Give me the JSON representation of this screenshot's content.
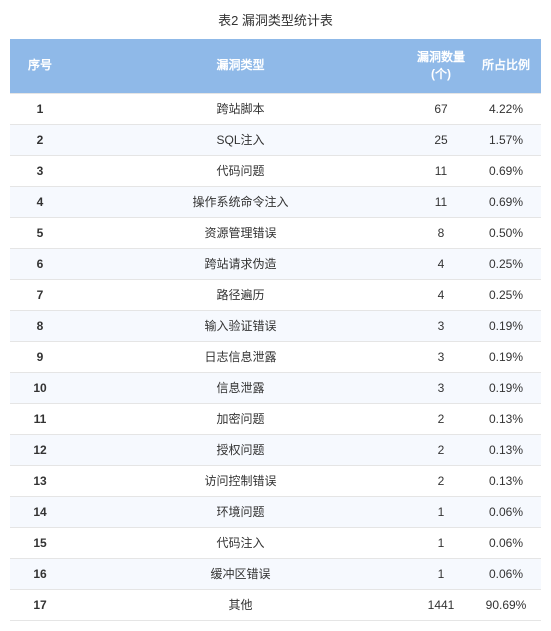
{
  "title": "表2 漏洞类型统计表",
  "table": {
    "header_bg": "#8fb9e8",
    "header_color": "#ffffff",
    "row_odd_bg": "#ffffff",
    "row_even_bg": "#f6f9fe",
    "border_color": "#e5e5e5",
    "text_color": "#333333",
    "font_size": 12,
    "columns": [
      {
        "label": "序号",
        "width": 60
      },
      {
        "label": "漏洞类型",
        "width": "auto"
      },
      {
        "label": "漏洞数量(个)",
        "width": 60
      },
      {
        "label": "所占比例",
        "width": 70
      }
    ],
    "rows": [
      {
        "index": "1",
        "type": "跨站脚本",
        "count": "67",
        "ratio": "4.22%"
      },
      {
        "index": "2",
        "type": "SQL注入",
        "count": "25",
        "ratio": "1.57%"
      },
      {
        "index": "3",
        "type": "代码问题",
        "count": "11",
        "ratio": "0.69%"
      },
      {
        "index": "4",
        "type": "操作系统命令注入",
        "count": "11",
        "ratio": "0.69%"
      },
      {
        "index": "5",
        "type": "资源管理错误",
        "count": "8",
        "ratio": "0.50%"
      },
      {
        "index": "6",
        "type": "跨站请求伪造",
        "count": "4",
        "ratio": "0.25%"
      },
      {
        "index": "7",
        "type": "路径遍历",
        "count": "4",
        "ratio": "0.25%"
      },
      {
        "index": "8",
        "type": "输入验证错误",
        "count": "3",
        "ratio": "0.19%"
      },
      {
        "index": "9",
        "type": "日志信息泄露",
        "count": "3",
        "ratio": "0.19%"
      },
      {
        "index": "10",
        "type": "信息泄露",
        "count": "3",
        "ratio": "0.19%"
      },
      {
        "index": "11",
        "type": "加密问题",
        "count": "2",
        "ratio": "0.13%"
      },
      {
        "index": "12",
        "type": "授权问题",
        "count": "2",
        "ratio": "0.13%"
      },
      {
        "index": "13",
        "type": "访问控制错误",
        "count": "2",
        "ratio": "0.13%"
      },
      {
        "index": "14",
        "type": "环境问题",
        "count": "1",
        "ratio": "0.06%"
      },
      {
        "index": "15",
        "type": "代码注入",
        "count": "1",
        "ratio": "0.06%"
      },
      {
        "index": "16",
        "type": "缓冲区错误",
        "count": "1",
        "ratio": "0.06%"
      },
      {
        "index": "17",
        "type": "其他",
        "count": "1441",
        "ratio": "90.69%"
      }
    ]
  }
}
